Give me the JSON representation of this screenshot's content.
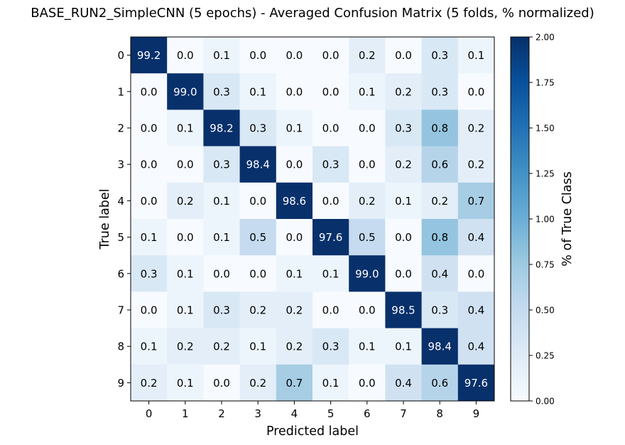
{
  "chart_data": {
    "type": "heatmap",
    "title": "BASE_RUN2_SimpleCNN (5 epochs) - Averaged Confusion Matrix (5 folds, % normalized)",
    "xlabel": "Predicted label",
    "ylabel": "True label",
    "x_categories": [
      "0",
      "1",
      "2",
      "3",
      "4",
      "5",
      "6",
      "7",
      "8",
      "9"
    ],
    "y_categories": [
      "0",
      "1",
      "2",
      "3",
      "4",
      "5",
      "6",
      "7",
      "8",
      "9"
    ],
    "values": [
      [
        99.2,
        0.0,
        0.1,
        0.0,
        0.0,
        0.0,
        0.2,
        0.0,
        0.3,
        0.1
      ],
      [
        0.0,
        99.0,
        0.3,
        0.1,
        0.0,
        0.0,
        0.1,
        0.2,
        0.3,
        0.0
      ],
      [
        0.0,
        0.1,
        98.2,
        0.3,
        0.1,
        0.0,
        0.0,
        0.3,
        0.8,
        0.2
      ],
      [
        0.0,
        0.0,
        0.3,
        98.4,
        0.0,
        0.3,
        0.0,
        0.2,
        0.6,
        0.2
      ],
      [
        0.0,
        0.2,
        0.1,
        0.0,
        98.6,
        0.0,
        0.2,
        0.1,
        0.2,
        0.7
      ],
      [
        0.1,
        0.0,
        0.1,
        0.5,
        0.0,
        97.6,
        0.5,
        0.0,
        0.8,
        0.4
      ],
      [
        0.3,
        0.1,
        0.0,
        0.0,
        0.1,
        0.1,
        99.0,
        0.0,
        0.4,
        0.0
      ],
      [
        0.0,
        0.1,
        0.3,
        0.2,
        0.2,
        0.0,
        0.0,
        98.5,
        0.3,
        0.4
      ],
      [
        0.1,
        0.2,
        0.2,
        0.1,
        0.2,
        0.3,
        0.1,
        0.1,
        98.4,
        0.4
      ],
      [
        0.2,
        0.1,
        0.0,
        0.2,
        0.7,
        0.1,
        0.0,
        0.4,
        0.6,
        97.6
      ]
    ],
    "colorbar": {
      "label": "% of True Class",
      "range": [
        0,
        2
      ],
      "ticks": [
        "0.00",
        "0.25",
        "0.50",
        "0.75",
        "1.00",
        "1.25",
        "1.50",
        "1.75",
        "2.00"
      ],
      "colormap": "Blues"
    },
    "grid": false
  }
}
